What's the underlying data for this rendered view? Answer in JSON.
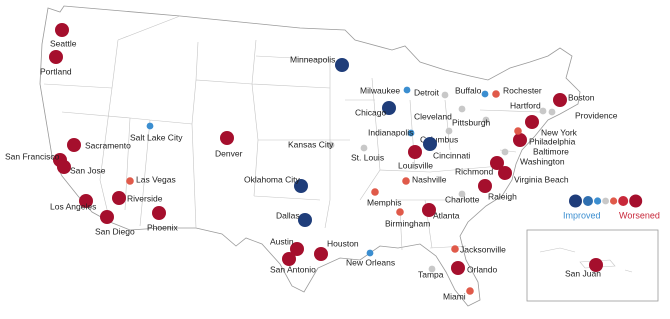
{
  "cities": [
    {
      "name": "Seattle",
      "color": "#a50f2d"
    },
    {
      "name": "Portland",
      "color": "#a50f2d"
    },
    {
      "name": "Sacramento",
      "color": "#a50f2d"
    },
    {
      "name": "San Francisco",
      "color": "#a50f2d"
    },
    {
      "name": "San Jose",
      "color": "#a50f2d"
    },
    {
      "name": "Las Vegas",
      "color": "#e05a4a"
    },
    {
      "name": "Los Angeles",
      "color": "#a50f2d"
    },
    {
      "name": "Riverside",
      "color": "#a50f2d"
    },
    {
      "name": "San Diego",
      "color": "#a50f2d"
    },
    {
      "name": "Phoenix",
      "color": "#a50f2d"
    },
    {
      "name": "Salt Lake City",
      "color": "#3b8ed0"
    },
    {
      "name": "Denver",
      "color": "#a50f2d"
    },
    {
      "name": "Minneapolis",
      "color": "#1f3d7a"
    },
    {
      "name": "Milwaukee",
      "color": "#3b8ed0"
    },
    {
      "name": "Chicago",
      "color": "#1f3d7a"
    },
    {
      "name": "Detroit",
      "color": "#c8c8c8"
    },
    {
      "name": "Buffalo",
      "color": "#3b8ed0"
    },
    {
      "name": "Rochester",
      "color": "#e05a4a"
    },
    {
      "name": "Boston",
      "color": "#a50f2d"
    },
    {
      "name": "Hartford",
      "color": "#c8c8c8"
    },
    {
      "name": "Providence",
      "color": "#c8c8c8"
    },
    {
      "name": "New York",
      "color": "#a50f2d"
    },
    {
      "name": "Cleveland",
      "color": "#c8c8c8"
    },
    {
      "name": "Pittsburgh",
      "color": "#c8c8c8"
    },
    {
      "name": "Indianapolis",
      "color": "#3b8ed0"
    },
    {
      "name": "Columbus",
      "color": "#c8c8c8"
    },
    {
      "name": "Kansas City",
      "color": "#c8c8c8"
    },
    {
      "name": "St. Louis",
      "color": "#c8c8c8"
    },
    {
      "name": "Cincinnati",
      "color": "#1f3d7a"
    },
    {
      "name": "Louisville",
      "color": "#a50f2d"
    },
    {
      "name": "Philadelphia",
      "color": "#a50f2d"
    },
    {
      "name": "Baltimore",
      "color": "#e05a4a"
    },
    {
      "name": "Washington",
      "color": "#c8c8c8"
    },
    {
      "name": "Richmond",
      "color": "#a50f2d"
    },
    {
      "name": "Virginia Beach",
      "color": "#a50f2d"
    },
    {
      "name": "Raleigh",
      "color": "#a50f2d"
    },
    {
      "name": "Charlotte",
      "color": "#c8c8c8"
    },
    {
      "name": "Nashville",
      "color": "#e05a4a"
    },
    {
      "name": "Memphis",
      "color": "#e05a4a"
    },
    {
      "name": "Oklahoma City",
      "color": "#1f3d7a"
    },
    {
      "name": "Dallas",
      "color": "#1f3d7a"
    },
    {
      "name": "Birmingham",
      "color": "#e05a4a"
    },
    {
      "name": "Atlanta",
      "color": "#a50f2d"
    },
    {
      "name": "Austin",
      "color": "#a50f2d"
    },
    {
      "name": "Houston",
      "color": "#a50f2d"
    },
    {
      "name": "San Antonio",
      "color": "#a50f2d"
    },
    {
      "name": "New Orleans",
      "color": "#3b8ed0"
    },
    {
      "name": "Jacksonville",
      "color": "#e05a4a"
    },
    {
      "name": "Tampa",
      "color": "#c8c8c8"
    },
    {
      "name": "Orlando",
      "color": "#a50f2d"
    },
    {
      "name": "Miami",
      "color": "#e05a4a"
    },
    {
      "name": "San Juan",
      "color": "#a50f2d"
    }
  ],
  "legend": {
    "improved": "Improved",
    "worsened": "Worsened",
    "colors": [
      "#1f3d7a",
      "#2f6fb0",
      "#3b8ed0",
      "#c8c8c8",
      "#e05a4a",
      "#c8283a",
      "#a50f2d"
    ]
  }
}
